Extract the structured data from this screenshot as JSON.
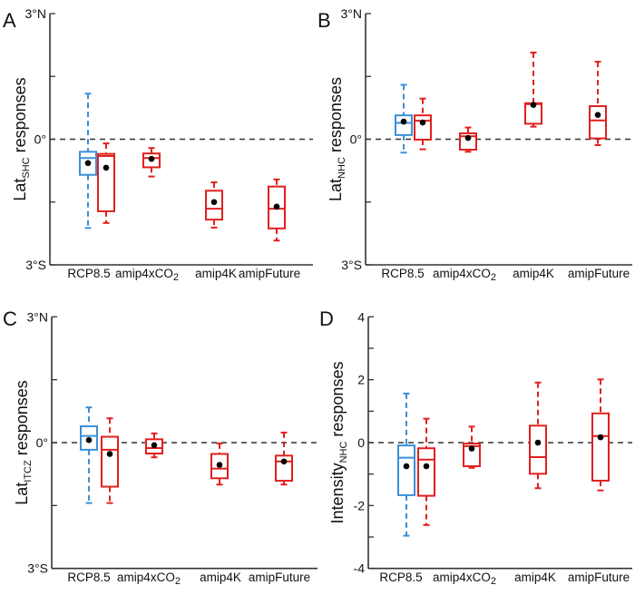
{
  "chart_data": [
    {
      "type": "boxplot",
      "panel": "A",
      "ylabel_main": "Lat",
      "ylabel_sub": "SHC",
      "ylabel_rest": " responses",
      "ylim": [
        -3,
        3
      ],
      "yticks": [
        3,
        1.5,
        0,
        -1.5,
        -3
      ],
      "ytick_labels": [
        "3°N",
        "",
        "0°",
        "",
        "3°S"
      ],
      "reference_line": 0,
      "categories": [
        {
          "label": "RCP8.5",
          "sub": ""
        },
        {
          "label": "amip4xCO",
          "sub": "2"
        },
        {
          "label": "amip4K",
          "sub": ""
        },
        {
          "label": "amipFuture",
          "sub": ""
        }
      ],
      "boxes": [
        {
          "category": "RCP8.5",
          "series": "blue",
          "whisker_high": 1.09,
          "q3": -0.3,
          "median": -0.45,
          "q1": -0.85,
          "whisker_low": -2.12,
          "mean": -0.57
        },
        {
          "category": "RCP8.5",
          "series": "red",
          "whisker_high": -0.1,
          "q3": -0.35,
          "median": -0.4,
          "q1": -1.72,
          "whisker_low": -2.0,
          "mean": -0.68
        },
        {
          "category": "amip4xCO2",
          "series": "red",
          "whisker_high": -0.21,
          "q3": -0.34,
          "median": -0.45,
          "q1": -0.67,
          "whisker_low": -0.89,
          "mean": -0.47
        },
        {
          "category": "amip4K",
          "series": "red",
          "whisker_high": -1.03,
          "q3": -1.23,
          "median": -1.66,
          "q1": -1.92,
          "whisker_low": -2.11,
          "mean": -1.5
        },
        {
          "category": "amipFuture",
          "series": "red",
          "whisker_high": -0.96,
          "q3": -1.13,
          "median": -1.66,
          "q1": -2.13,
          "whisker_low": -2.42,
          "mean": -1.61
        }
      ]
    },
    {
      "type": "boxplot",
      "panel": "B",
      "ylabel_main": "Lat",
      "ylabel_sub": "NHC",
      "ylabel_rest": " responses",
      "ylim": [
        -3,
        3
      ],
      "yticks": [
        3,
        1.5,
        0,
        -1.5,
        -3
      ],
      "ytick_labels": [
        "3°N",
        "",
        "0°",
        "",
        "3°S"
      ],
      "reference_line": 0,
      "categories": [
        {
          "label": "RCP8.5",
          "sub": ""
        },
        {
          "label": "amip4xCO",
          "sub": "2"
        },
        {
          "label": "amip4K",
          "sub": ""
        },
        {
          "label": "amipFuture",
          "sub": ""
        }
      ],
      "boxes": [
        {
          "category": "RCP8.5",
          "series": "blue",
          "whisker_high": 1.3,
          "q3": 0.57,
          "median": 0.39,
          "q1": 0.1,
          "whisker_low": -0.32,
          "mean": 0.42
        },
        {
          "category": "RCP8.5",
          "series": "red",
          "whisker_high": 0.97,
          "q3": 0.57,
          "median": 0.44,
          "q1": -0.01,
          "whisker_low": -0.24,
          "mean": 0.4
        },
        {
          "category": "amip4xCO2",
          "series": "red",
          "whisker_high": 0.28,
          "q3": 0.14,
          "median": 0.07,
          "q1": -0.25,
          "whisker_low": -0.3,
          "mean": 0.03
        },
        {
          "category": "amip4K",
          "series": "red",
          "whisker_high": 2.07,
          "q3": 0.86,
          "median": 0.84,
          "q1": 0.37,
          "whisker_low": 0.3,
          "mean": 0.82
        },
        {
          "category": "amipFuture",
          "series": "red",
          "whisker_high": 1.85,
          "q3": 0.79,
          "median": 0.45,
          "q1": 0.02,
          "whisker_low": -0.14,
          "mean": 0.58
        }
      ]
    },
    {
      "type": "boxplot",
      "panel": "C",
      "ylabel_main": "Lat",
      "ylabel_sub": "ITCZ",
      "ylabel_rest": " responses",
      "ylim": [
        -3,
        3
      ],
      "yticks": [
        3,
        1.5,
        0,
        -1.5,
        -3
      ],
      "ytick_labels": [
        "3°N",
        "",
        "0°",
        "",
        "3°S"
      ],
      "reference_line": 0,
      "categories": [
        {
          "label": "RCP8.5",
          "sub": ""
        },
        {
          "label": "amip4xCO",
          "sub": "2"
        },
        {
          "label": "amip4K",
          "sub": ""
        },
        {
          "label": "amipFuture",
          "sub": ""
        }
      ],
      "boxes": [
        {
          "category": "RCP8.5",
          "series": "blue",
          "whisker_high": 0.84,
          "q3": 0.39,
          "median": 0.16,
          "q1": -0.17,
          "whisker_low": -1.44,
          "mean": 0.06
        },
        {
          "category": "RCP8.5",
          "series": "red",
          "whisker_high": 0.58,
          "q3": 0.14,
          "median": -0.17,
          "q1": -1.05,
          "whisker_low": -1.44,
          "mean": -0.27
        },
        {
          "category": "amip4xCO2",
          "series": "red",
          "whisker_high": 0.22,
          "q3": 0.08,
          "median": -0.13,
          "q1": -0.26,
          "whisker_low": -0.35,
          "mean": -0.06
        },
        {
          "category": "amip4K",
          "series": "red",
          "whisker_high": -0.02,
          "q3": -0.27,
          "median": -0.62,
          "q1": -0.85,
          "whisker_low": -1.0,
          "mean": -0.53
        },
        {
          "category": "amipFuture",
          "series": "red",
          "whisker_high": 0.24,
          "q3": -0.31,
          "median": -0.45,
          "q1": -0.91,
          "whisker_low": -1.0,
          "mean": -0.45
        }
      ]
    },
    {
      "type": "boxplot",
      "panel": "D",
      "ylabel_main": "Intensity",
      "ylabel_sub": "NHC",
      "ylabel_rest": " responses",
      "ylim": [
        -4,
        4
      ],
      "yticks": [
        4,
        3,
        2,
        1,
        0,
        -1,
        -2,
        -3,
        -4
      ],
      "ytick_labels": [
        "4",
        "",
        "2",
        "",
        "0",
        "",
        "-2",
        "",
        "-4"
      ],
      "reference_line": 0,
      "categories": [
        {
          "label": "RCP8.5",
          "sub": ""
        },
        {
          "label": "amip4xCO",
          "sub": "2"
        },
        {
          "label": "amip4K",
          "sub": ""
        },
        {
          "label": "amipFuture",
          "sub": ""
        }
      ],
      "boxes": [
        {
          "category": "RCP8.5",
          "series": "blue",
          "whisker_high": 1.56,
          "q3": -0.09,
          "median": -0.48,
          "q1": -1.67,
          "whisker_low": -2.96,
          "mean": -0.75
        },
        {
          "category": "RCP8.5",
          "series": "red",
          "whisker_high": 0.76,
          "q3": -0.18,
          "median": -0.54,
          "q1": -1.69,
          "whisker_low": -2.62,
          "mean": -0.75
        },
        {
          "category": "amip4xCO2",
          "series": "red",
          "whisker_high": 0.51,
          "q3": -0.03,
          "median": -0.11,
          "q1": -0.75,
          "whisker_low": -0.8,
          "mean": -0.19
        },
        {
          "category": "amip4K",
          "series": "red",
          "whisker_high": 1.91,
          "q3": 0.54,
          "median": -0.46,
          "q1": -0.99,
          "whisker_low": -1.45,
          "mean": 0.0
        },
        {
          "category": "amipFuture",
          "series": "red",
          "whisker_high": 2.01,
          "q3": 0.93,
          "median": 0.21,
          "q1": -1.21,
          "whisker_low": -1.52,
          "mean": 0.17
        }
      ]
    }
  ],
  "colors": {
    "blue": "#3b8fd8",
    "red": "#e0201e",
    "mean_dot": "#000000"
  }
}
